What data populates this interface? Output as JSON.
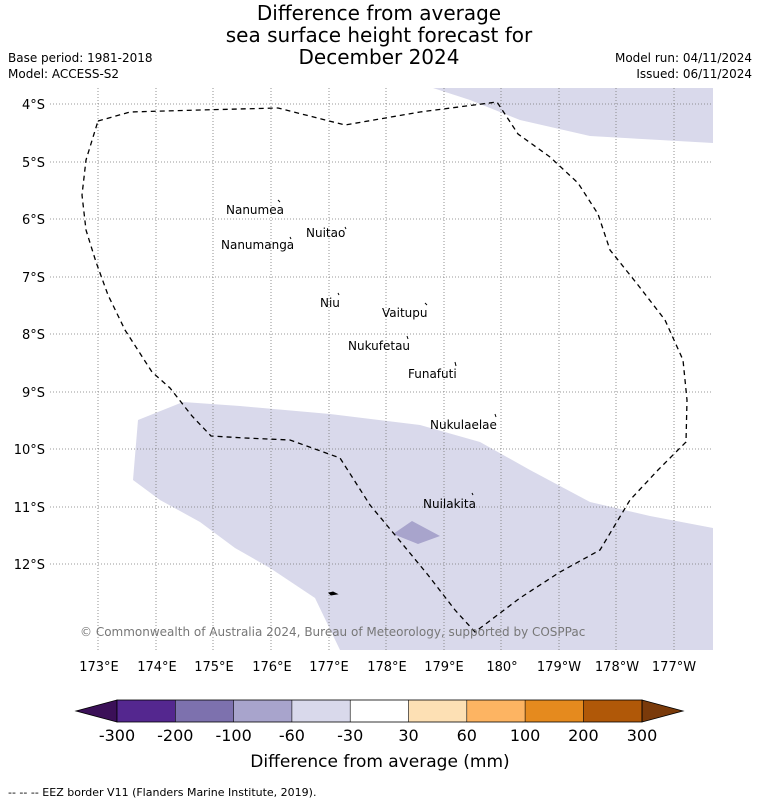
{
  "title": {
    "line1": "Difference from average",
    "line2": "sea surface height forecast for",
    "line3": "December 2024"
  },
  "meta": {
    "base_period": "Base period: 1981-2018",
    "model": "Model: ACCESS-S2",
    "model_run": "Model run: 04/11/2024",
    "issued": "Issued: 06/11/2024"
  },
  "map": {
    "lat_ticks": [
      "4°S",
      "5°S",
      "6°S",
      "7°S",
      "8°S",
      "9°S",
      "10°S",
      "11°S",
      "12°S"
    ],
    "lon_ticks": [
      "173°E",
      "174°E",
      "175°E",
      "176°E",
      "177°E",
      "178°E",
      "179°E",
      "180°",
      "179°W",
      "178°W",
      "177°W"
    ],
    "islands": [
      "Nanumea",
      "Nuitao",
      "Nanumanga",
      "Niu",
      "Vaitupu",
      "Nukufetau",
      "Funafuti",
      "Nukulaelae",
      "Nuilakita"
    ],
    "copyright": "© Commonwealth of Australia 2024, Bureau of Meteorology, supported by COSPPac"
  },
  "colorbar": {
    "ticks": [
      "-300",
      "-200",
      "-100",
      "-60",
      "-30",
      "30",
      "60",
      "100",
      "200",
      "300"
    ],
    "colors": [
      "#3b1058",
      "#54278f",
      "#7d71ae",
      "#a8a4cc",
      "#d9d9eb",
      "#ffffff",
      "#fde0b4",
      "#fdb462",
      "#e58a1e",
      "#b05808",
      "#7a3a0a"
    ],
    "title": "Difference from average (mm)"
  },
  "footer": {
    "legend": "--  --  -- EEZ border V11 (Flanders Marine Institute, 2019)."
  }
}
